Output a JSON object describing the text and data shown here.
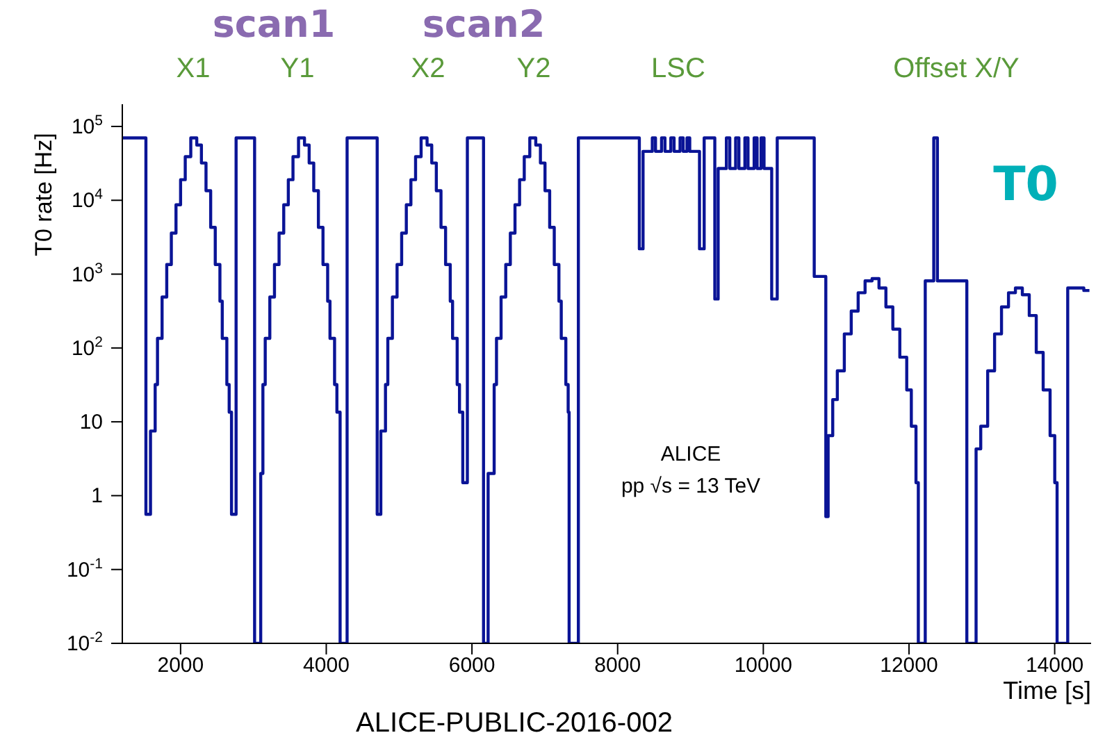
{
  "chart_data": {
    "type": "step",
    "xlabel": "Time [s]",
    "ylabel": "T0 rate [Hz]",
    "log": "y",
    "xlim": [
      1200,
      14500
    ],
    "xticks": [
      2000,
      4000,
      6000,
      8000,
      10000,
      12000,
      14000
    ],
    "ylim": [
      0.01,
      200000
    ],
    "yticks": [
      {
        "value": 0.01,
        "label": "10$^{-2}$"
      },
      {
        "value": 0.1,
        "label": "10$^{-1}$"
      },
      1,
      10,
      {
        "value": 100,
        "label": "10$^{2}$"
      },
      {
        "value": 1000,
        "label": "10$^{3}$"
      },
      {
        "value": 10000,
        "label": "10$^{4}$"
      },
      {
        "value": 100000,
        "label": "10$^{5}$"
      }
    ],
    "annotations": [
      "scan1",
      "scan2",
      "X1",
      "Y1",
      "X2",
      "Y2",
      "LSC",
      "Offset X/Y",
      "T0",
      "ALICE",
      "pp √s = 13 TeV",
      "ALICE-PUBLIC-2016-002"
    ],
    "series": [
      {
        "color": "#0a1496",
        "x": [
          1200,
          1524,
          1587,
          1651,
          1683,
          1746,
          1810,
          1873,
          1937,
          2000,
          2064,
          2140,
          2222,
          2286,
          2349,
          2413,
          2476,
          2540,
          2572,
          2635,
          2667,
          2699,
          2762,
          3016,
          3100,
          3130,
          3162,
          3225,
          3289,
          3352,
          3416,
          3479,
          3543,
          3619,
          3701,
          3765,
          3828,
          3892,
          3955,
          4019,
          4051,
          4114,
          4146,
          4190,
          4286,
          4699,
          4749,
          4813,
          4845,
          4908,
          4972,
          5035,
          5099,
          5162,
          5226,
          5302,
          5384,
          5448,
          5511,
          5575,
          5638,
          5702,
          5734,
          5797,
          5829,
          5874,
          5937,
          6159,
          6222,
          6305,
          6337,
          6400,
          6464,
          6527,
          6591,
          6654,
          6718,
          6794,
          6876,
          6940,
          7003,
          7067,
          7130,
          7194,
          7226,
          7289,
          7321,
          7334,
          7461,
          8298,
          8349,
          8476,
          8520,
          8603,
          8650,
          8730,
          8775,
          8857,
          8900,
          8952,
          8990,
          9124,
          9188,
          9334,
          9380,
          9493,
          9540,
          9620,
          9665,
          9747,
          9790,
          9874,
          9915,
          9969,
          10010,
          10115,
          10191,
          10699,
          10858,
          10890,
          10953,
          11016,
          11112,
          11207,
          11302,
          11397,
          11493,
          11588,
          11683,
          11778,
          11874,
          11969,
          12032,
          12096,
          12128,
          12223,
          12340,
          12390,
          12794,
          12921,
          12985,
          13080,
          13175,
          13270,
          13366,
          13461,
          13556,
          13651,
          13747,
          13842,
          13937,
          14001,
          14033,
          14179,
          14400,
          14477
        ],
        "values": [
          70000,
          0.56,
          7.5,
          32,
          135,
          490,
          1350,
          3600,
          8700,
          19000,
          39000,
          70000,
          56000,
          32000,
          13500,
          4300,
          1350,
          430,
          135,
          32,
          13.5,
          0.56,
          70000,
          0.01,
          2,
          32,
          135,
          490,
          1350,
          3600,
          8700,
          19000,
          39000,
          70000,
          56000,
          32000,
          13500,
          4300,
          1350,
          430,
          135,
          32,
          13.5,
          0.01,
          70000,
          0.56,
          7.5,
          32,
          135,
          490,
          1350,
          3600,
          8700,
          19000,
          39000,
          70000,
          56000,
          32000,
          13500,
          4300,
          1350,
          430,
          135,
          32,
          13.5,
          1.5,
          70000,
          0.01,
          2,
          32,
          135,
          490,
          1350,
          3600,
          8700,
          19000,
          39000,
          70000,
          56000,
          32000,
          13500,
          4300,
          1350,
          430,
          135,
          32,
          13.5,
          0.01,
          70000,
          2200,
          46000,
          70000,
          46000,
          70000,
          46000,
          70000,
          46000,
          70000,
          46000,
          70000,
          46000,
          2200,
          70000,
          460,
          27000,
          70000,
          27000,
          70000,
          27000,
          70000,
          27000,
          70000,
          27000,
          70000,
          27000,
          460,
          70000,
          930,
          0.52,
          6.5,
          20,
          49,
          155,
          316,
          560,
          810,
          870,
          650,
          360,
          180,
          75,
          27,
          8.7,
          1.5,
          0.01,
          810,
          70000,
          810,
          0.01,
          4.3,
          8.7,
          49,
          155,
          360,
          560,
          650,
          525,
          275,
          87,
          27,
          6.5,
          1.5,
          0.01,
          650,
          600,
          600
        ]
      }
    ]
  }
}
